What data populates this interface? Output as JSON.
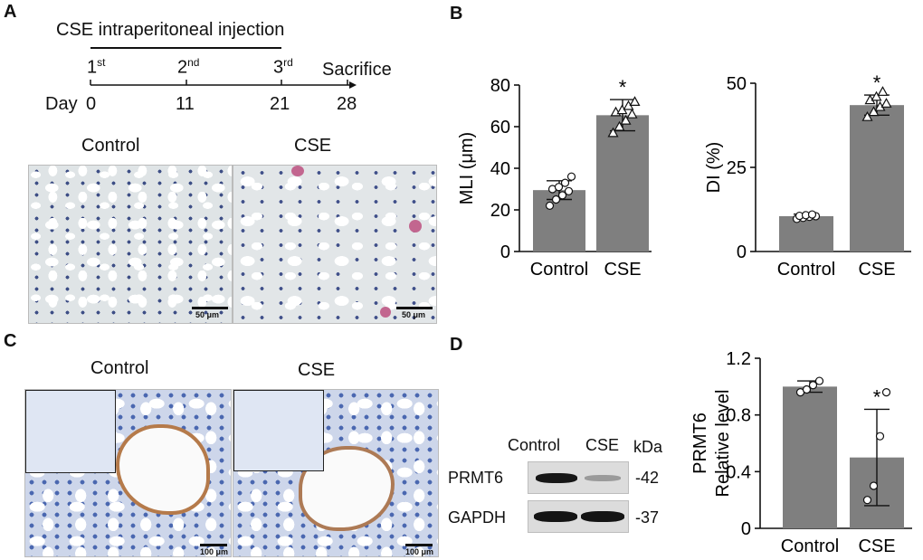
{
  "panels": {
    "A": "A",
    "B": "B",
    "C": "C",
    "D": "D"
  },
  "timeline": {
    "header": "CSE intraperitoneal injection",
    "injections": [
      {
        "num": "1",
        "sup": "st",
        "day": "0"
      },
      {
        "num": "2",
        "sup": "nd",
        "day": "11"
      },
      {
        "num": "3",
        "sup": "rd",
        "day": "21"
      }
    ],
    "day_label": "Day",
    "sacrifice_label": "Sacrifice",
    "sacrifice_day": "28"
  },
  "micrographs_A": {
    "left_label": "Control",
    "right_label": "CSE",
    "scale": "50 μm"
  },
  "micrographs_C": {
    "left_label": "Control",
    "right_label": "CSE",
    "scale": "100 μm"
  },
  "western": {
    "lanes": [
      "Control",
      "CSE"
    ],
    "unit": "kDa",
    "rows": [
      {
        "protein": "PRMT6",
        "kda": "-42"
      },
      {
        "protein": "GAPDH",
        "kda": "-37"
      }
    ]
  },
  "chart_data": [
    {
      "type": "bar",
      "categories": [
        "Control",
        "CSE"
      ],
      "values": [
        29.5,
        65.5
      ],
      "errors": [
        4.5,
        7.5
      ],
      "points": [
        [
          22,
          25,
          27,
          29,
          30,
          31,
          33,
          36
        ],
        [
          57,
          60,
          63,
          66,
          67,
          68,
          70,
          72
        ]
      ],
      "ylabel": "MLI (μm)",
      "ylim": [
        0,
        80
      ],
      "yticks": [
        0,
        20,
        40,
        60,
        80
      ],
      "significance": [
        "",
        "*"
      ],
      "marker": "circle-control, triangle-cse",
      "bar_color": "#7f7f7f"
    },
    {
      "type": "bar",
      "categories": [
        "Control",
        "CSE"
      ],
      "values": [
        10.5,
        43.5
      ],
      "errors": [
        0.6,
        3.0
      ],
      "points": [
        [
          9.7,
          10.0,
          10.3,
          10.5,
          10.6,
          10.8,
          11.0
        ],
        [
          40,
          41.5,
          43,
          44,
          45,
          46,
          47.5
        ]
      ],
      "ylabel": "DI (%)",
      "ylim": [
        0,
        50
      ],
      "yticks": [
        0,
        25,
        50
      ],
      "significance": [
        "",
        "*"
      ],
      "marker": "circle-control, triangle-cse",
      "bar_color": "#7f7f7f"
    },
    {
      "type": "bar",
      "categories": [
        "Control",
        "CSE"
      ],
      "values": [
        1.0,
        0.5
      ],
      "errors": [
        0.04,
        0.34
      ],
      "points": [
        [
          0.96,
          0.98,
          1.01,
          1.04
        ],
        [
          0.2,
          0.3,
          0.65,
          0.96
        ]
      ],
      "ylabel": "PRMT6\nRelative level",
      "ylabel_lines": [
        "PRMT6",
        "Relative level"
      ],
      "ylim": [
        0,
        1.2
      ],
      "yticks": [
        0,
        0.4,
        0.8,
        1.2
      ],
      "ytick_labels": [
        "0",
        "0.4",
        "0.8",
        "1.2"
      ],
      "significance": [
        "",
        "*"
      ],
      "marker": "circle",
      "bar_color": "#7f7f7f"
    }
  ]
}
